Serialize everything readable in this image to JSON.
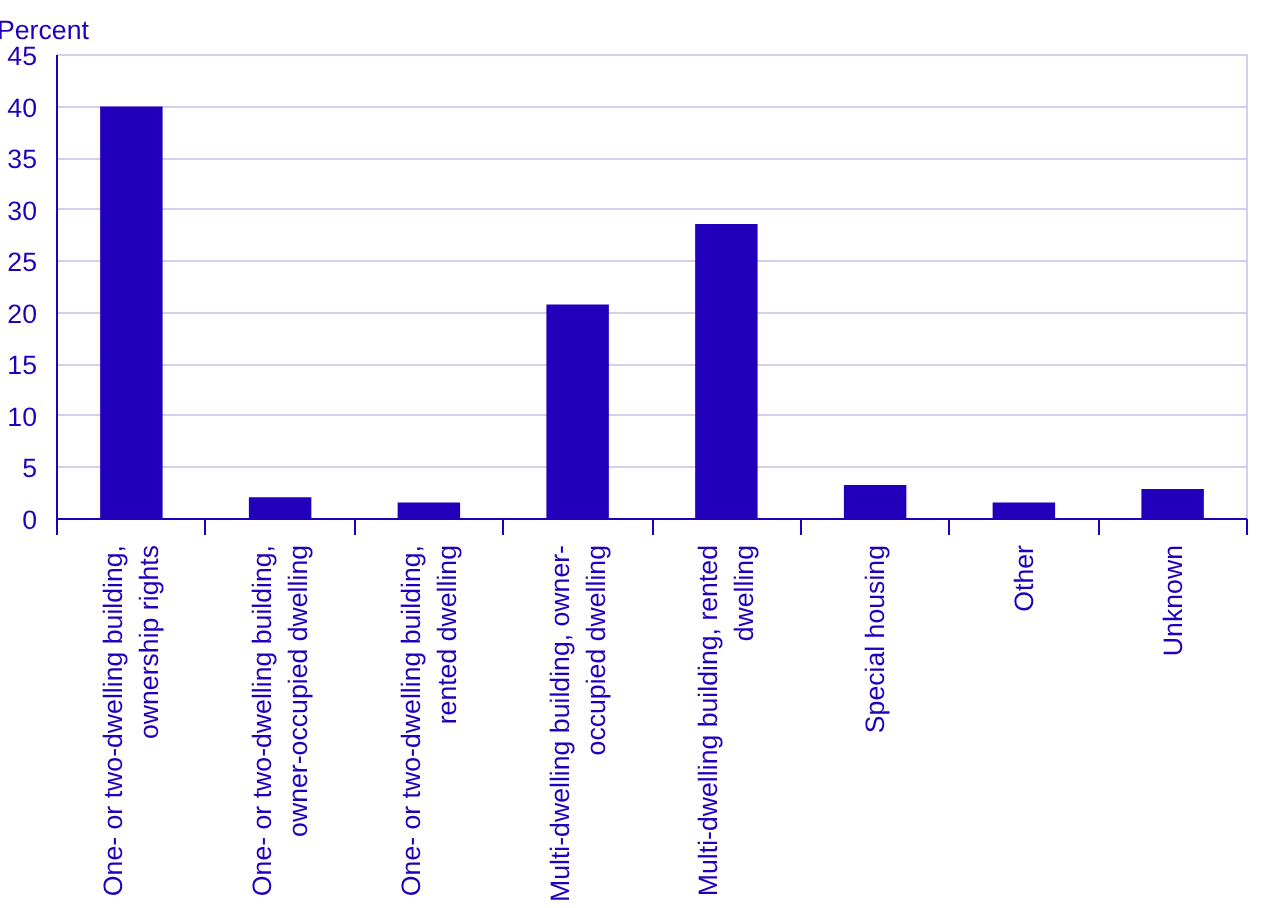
{
  "chart_data": {
    "type": "bar",
    "ylabel": "Percent",
    "categories": [
      "One- or two-dwelling building,\nownership rights",
      "One- or two-dwelling building,\nowner-occupied dwelling",
      "One- or two-dwelling building,\nrented dwelling",
      "Multi-dwelling building, owner-\noccupied dwelling",
      "Multi-dwelling building, rented\ndwelling",
      "Special housing",
      "Other",
      "Unknown"
    ],
    "values": [
      40.0,
      2.1,
      1.6,
      20.8,
      28.6,
      3.3,
      1.6,
      2.9
    ],
    "color": "#2200bb",
    "ylim": [
      0,
      45
    ],
    "yticks": [
      0,
      5,
      10,
      15,
      20,
      25,
      30,
      35,
      40,
      45
    ],
    "grid": "y"
  }
}
